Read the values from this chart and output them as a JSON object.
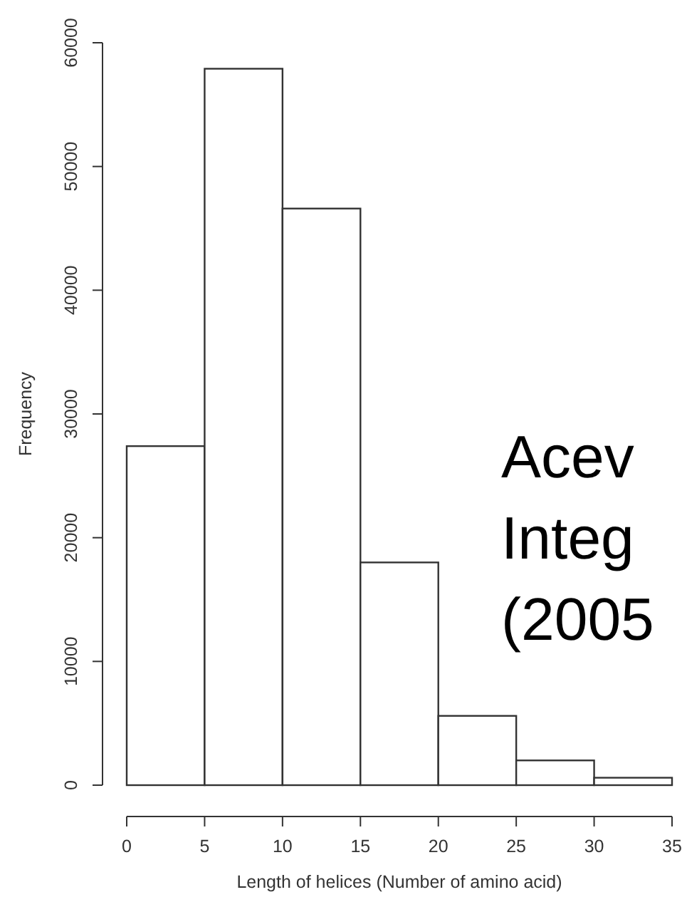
{
  "chart_data": {
    "type": "histogram",
    "xlabel": "Length of helices (Number of amino acid)",
    "ylabel": "Frequency",
    "bins": [
      0,
      5,
      10,
      15,
      20,
      25,
      30,
      35
    ],
    "values": [
      27400,
      57900,
      46600,
      18000,
      5600,
      2000,
      600
    ],
    "color": "#ffffff",
    "xlim": [
      0,
      35
    ],
    "xticks": [
      0,
      5,
      10,
      15,
      20,
      25,
      30,
      35
    ],
    "ylim": [
      0,
      60000
    ],
    "yticks": [
      0,
      10000,
      20000,
      30000,
      40000,
      50000,
      60000
    ],
    "annotations": [
      "Acev\nInteg\n(2005"
    ]
  }
}
